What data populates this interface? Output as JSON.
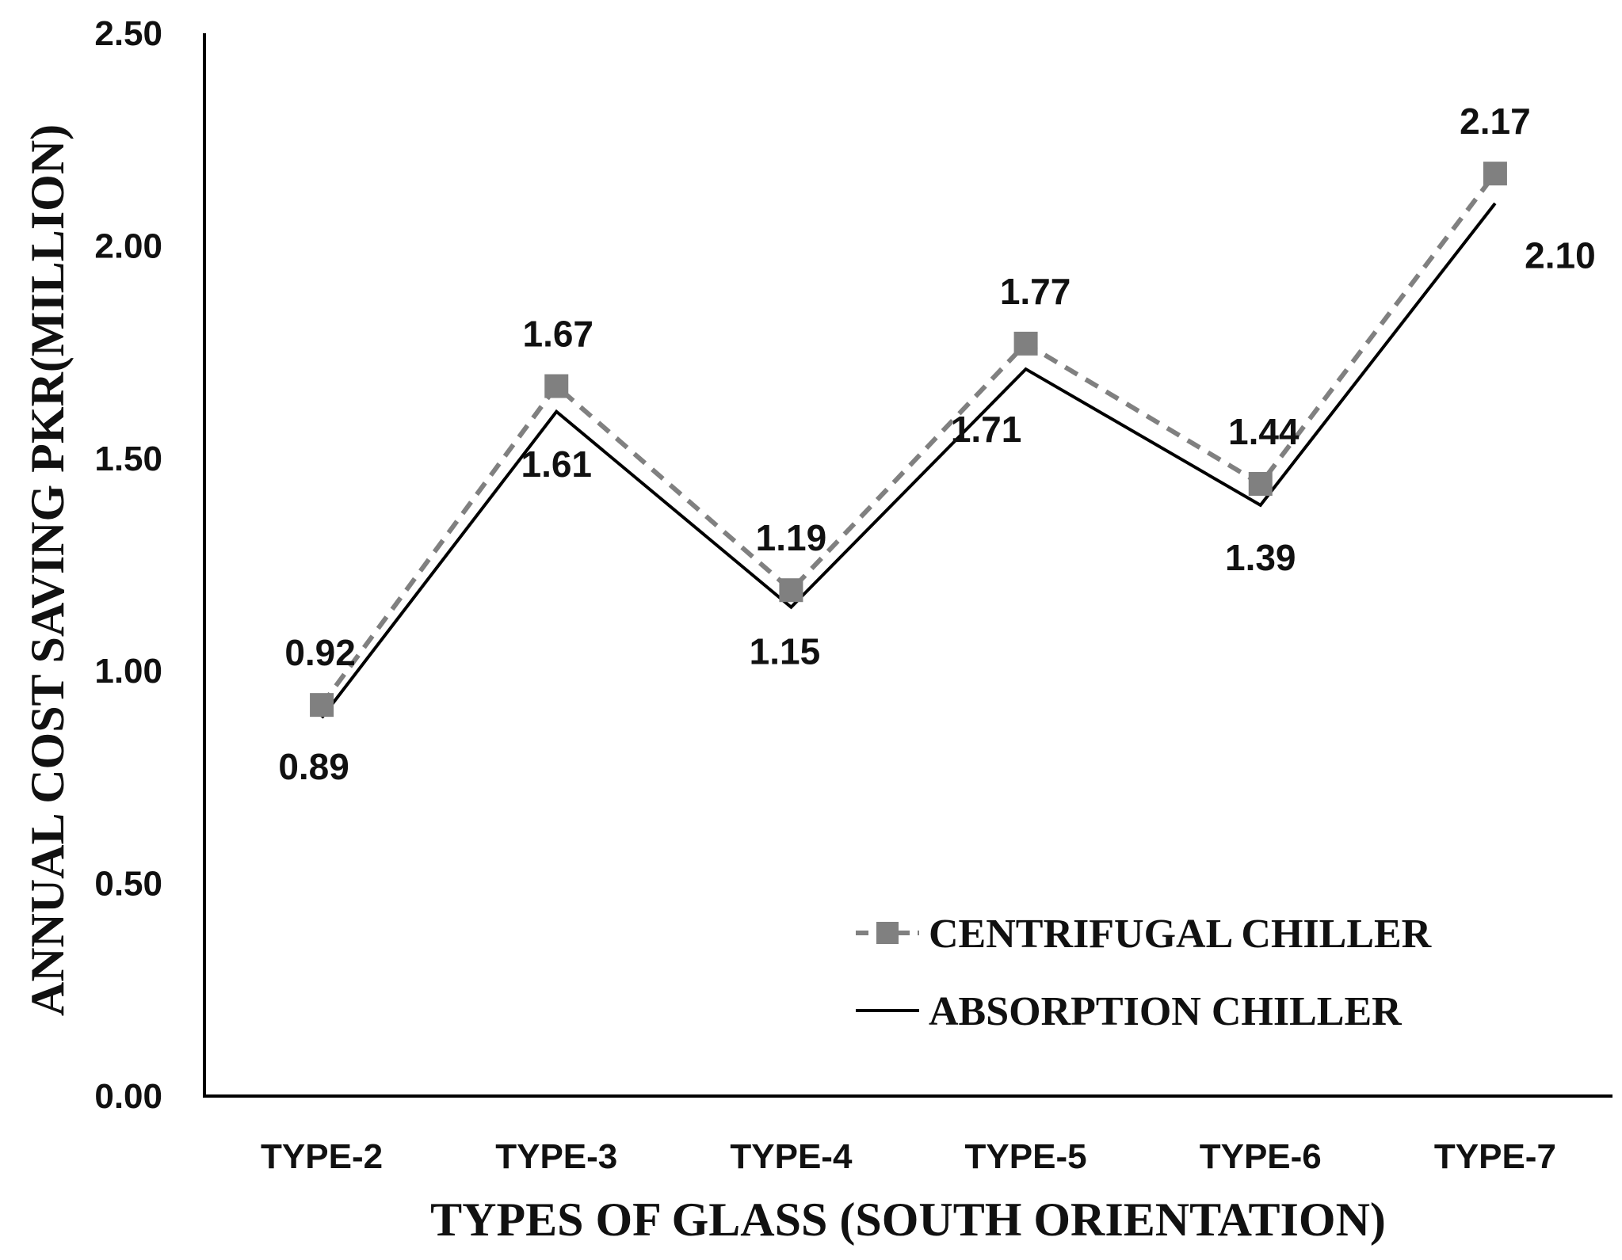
{
  "chart_data": {
    "type": "line",
    "title": "",
    "xlabel": "TYPES OF GLASS (SOUTH ORIENTATION)",
    "ylabel": "ANNUAL COST SAVING PKR(MILLION)",
    "categories": [
      "TYPE-2",
      "TYPE-3",
      "TYPE-4",
      "TYPE-5",
      "TYPE-6",
      "TYPE-7"
    ],
    "ylim": [
      0,
      2.5
    ],
    "yticks": [
      "0.00",
      "0.50",
      "1.00",
      "1.50",
      "2.00",
      "2.50"
    ],
    "grid": false,
    "legend_position": "bottom-right",
    "series": [
      {
        "name": "CENTRIFUGAL CHILLER",
        "values": [
          0.92,
          1.67,
          1.19,
          1.77,
          1.44,
          2.17
        ],
        "labels": [
          "0.92",
          "1.67",
          "1.19",
          "1.77",
          "1.44",
          "2.17"
        ],
        "color": "#808080",
        "line_style": "dashed",
        "marker": "square"
      },
      {
        "name": "ABSORPTION CHILLER",
        "values": [
          0.89,
          1.61,
          1.15,
          1.71,
          1.39,
          2.1
        ],
        "labels": [
          "0.89",
          "1.61",
          "1.15",
          "1.71",
          "1.39",
          "2.10"
        ],
        "color": "#000000",
        "line_style": "solid",
        "marker": "none"
      }
    ]
  }
}
